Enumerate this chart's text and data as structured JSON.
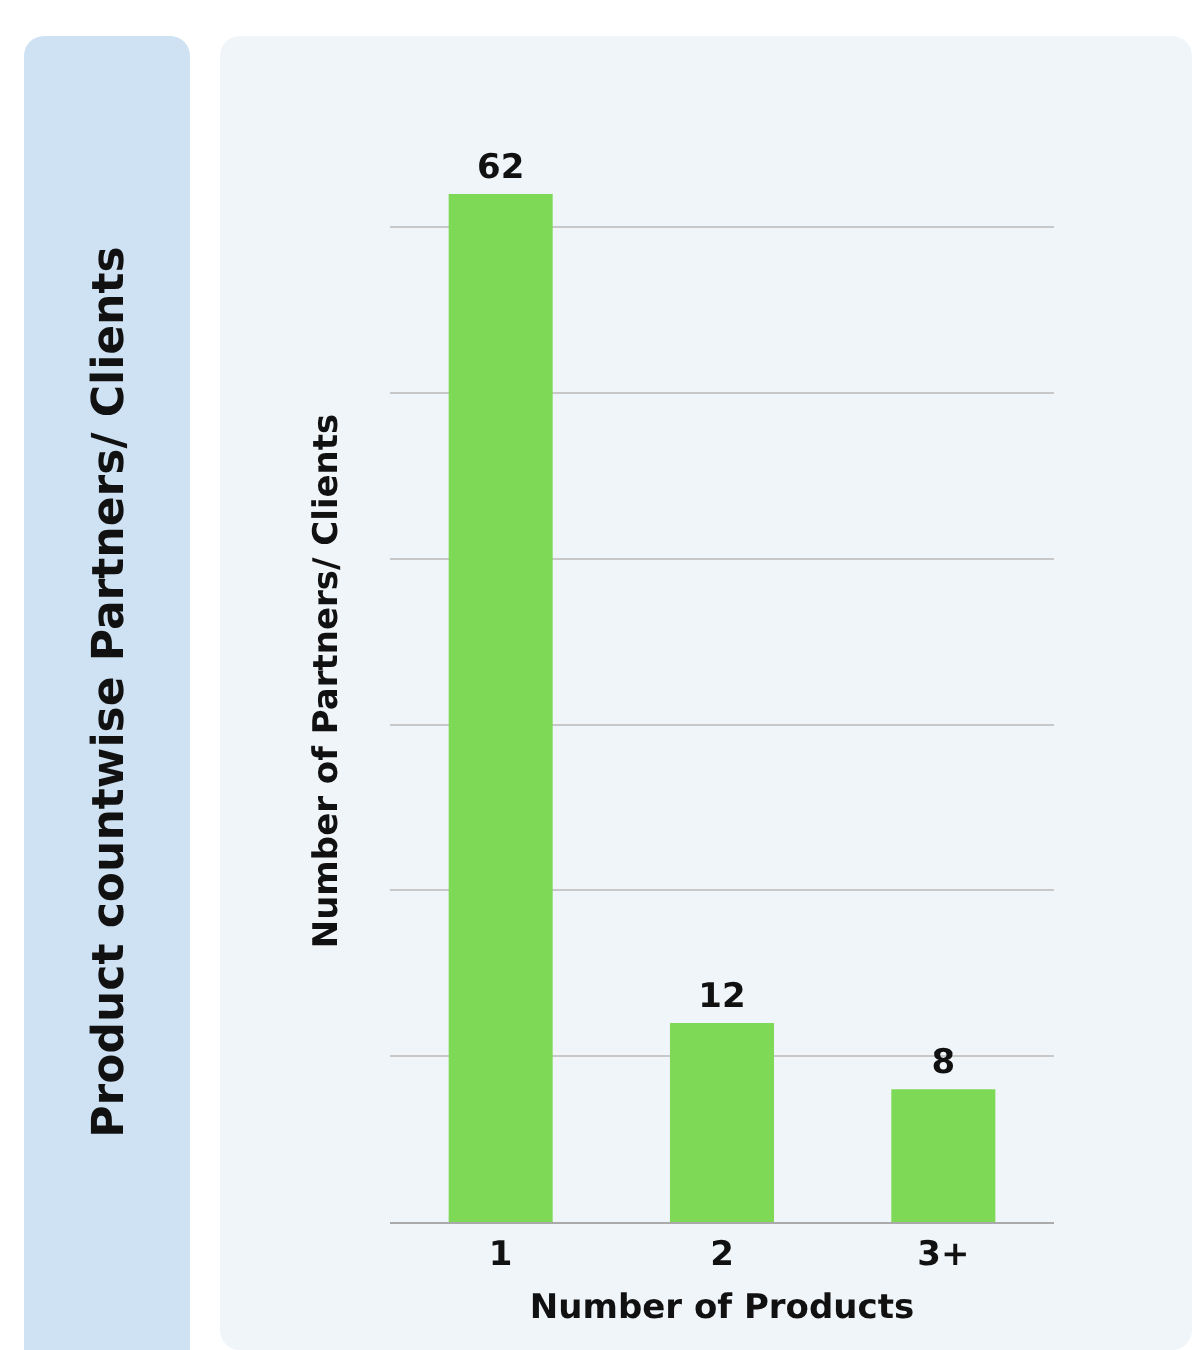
{
  "chart_data": {
    "type": "bar",
    "title": "Product countwise Partners/ Clients",
    "xlabel": "Number of Products",
    "ylabel": "Number of Partners/ Clients",
    "categories": [
      "1",
      "2",
      "3+"
    ],
    "values": [
      62,
      12,
      8
    ],
    "color": "#7ed957",
    "data_labels": true,
    "grid": "y"
  }
}
